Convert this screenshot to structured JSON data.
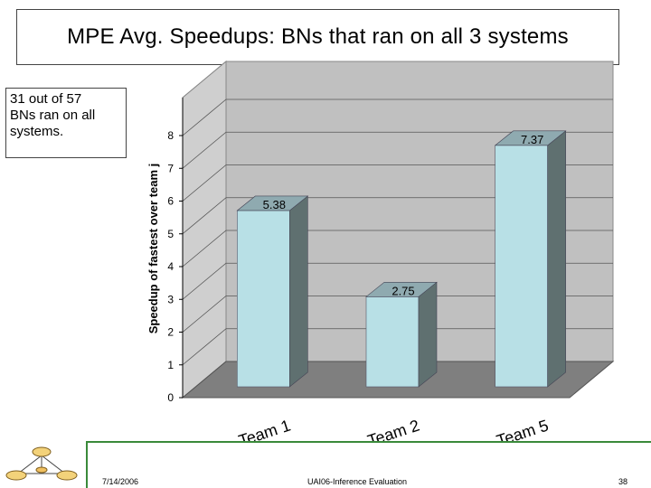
{
  "title": "MPE Avg. Speedups: BNs that ran on all 3 systems",
  "note": {
    "line1": "31 out of 57",
    "line2": "BNs ran on all",
    "line3": "systems."
  },
  "footer": {
    "date": "7/14/2006",
    "center": "UAI06-Inference Evaluation",
    "page": "38"
  },
  "colors": {
    "bar_front": "#b8e0e6",
    "bar_side": "#5f7070",
    "bar_top": "#8faab0",
    "wall": "#c0c0c0",
    "floor": "#7f7f7f",
    "footer_rule": "#3a8a3a"
  },
  "icons": {
    "logo": "network-diagram-logo"
  },
  "chart_data": {
    "type": "bar",
    "ylabel": "Speedup of fastest over team j",
    "categories": [
      "Team 1",
      "Team 2",
      "Team 5"
    ],
    "values": [
      5.38,
      2.75,
      7.37
    ],
    "value_labels": [
      "5.38",
      "2.75",
      "7.37"
    ],
    "ylim": [
      0,
      8
    ],
    "yticks": [
      "0",
      "1",
      "2",
      "3",
      "4",
      "5",
      "6",
      "7",
      "8"
    ],
    "grid": true,
    "style": "3d"
  }
}
